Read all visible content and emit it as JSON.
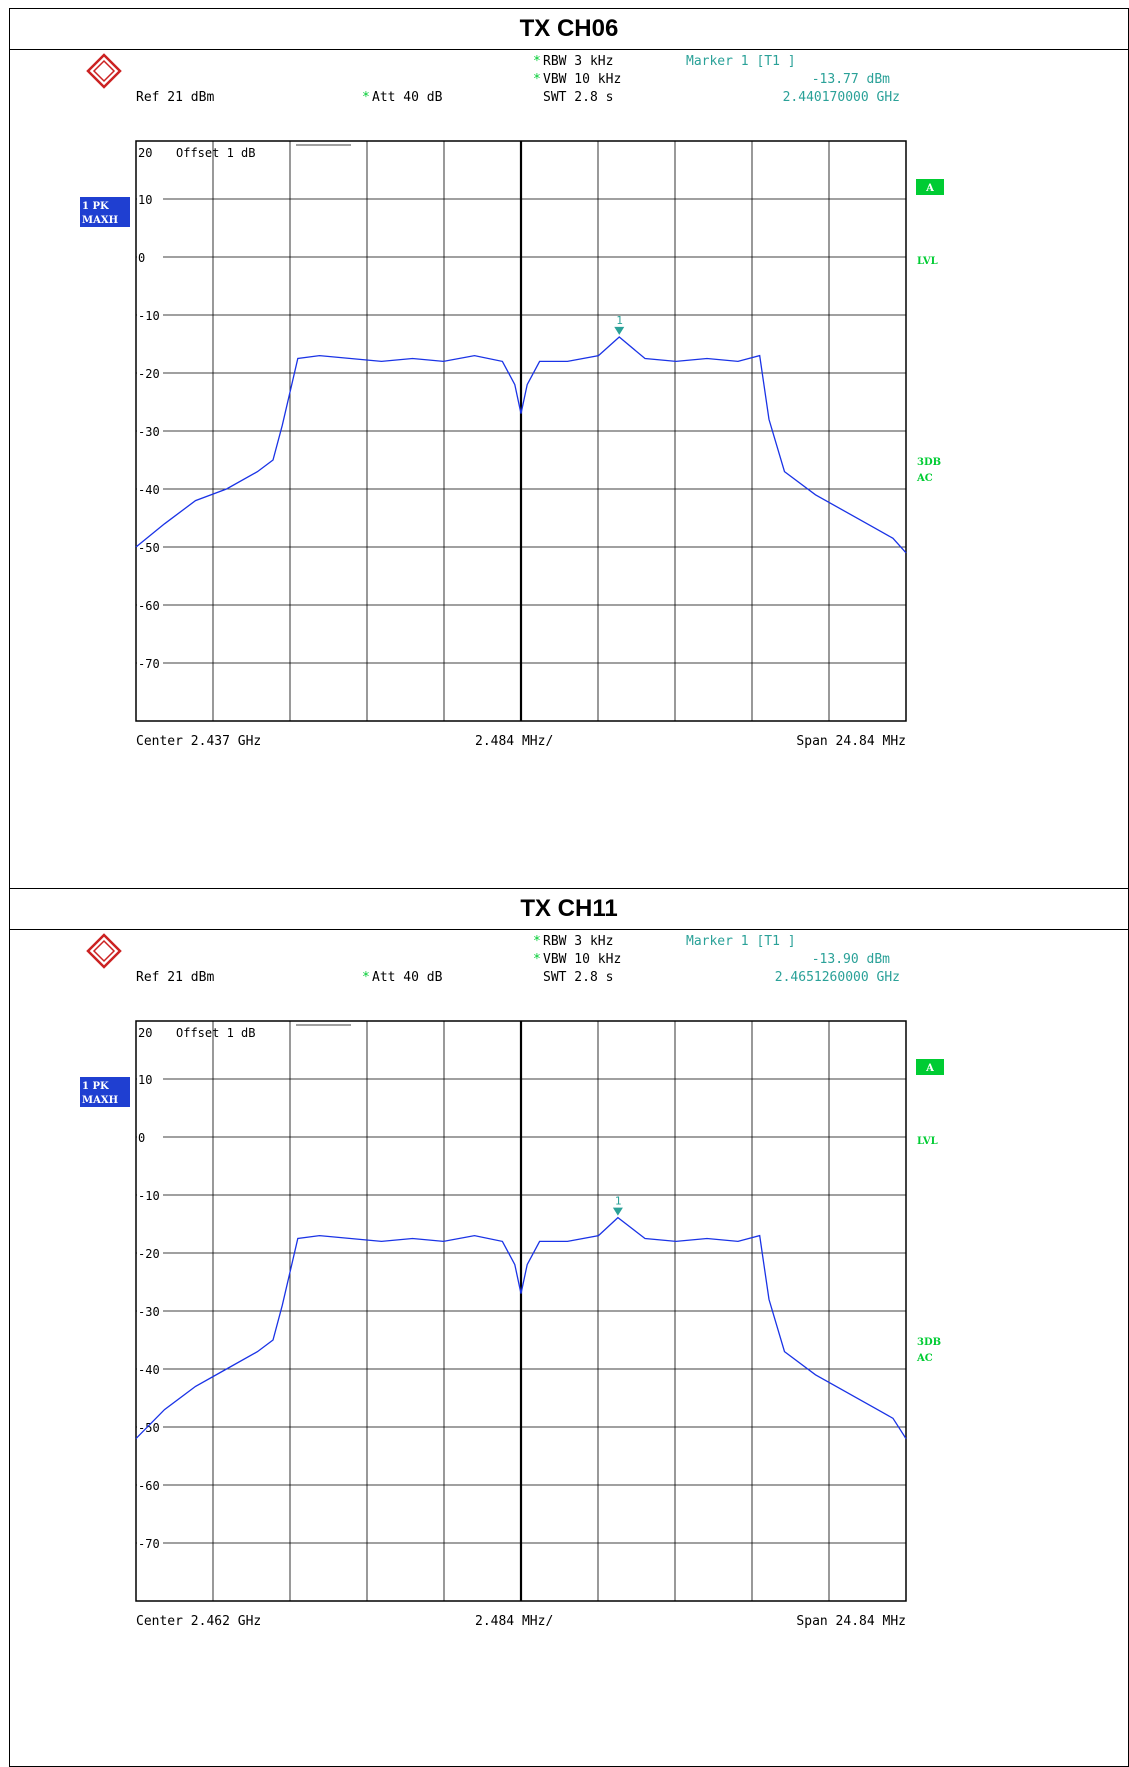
{
  "chart_data": [
    {
      "type": "line",
      "title": "TX CH06",
      "instrument_header": {
        "ref": "Ref  21 dBm",
        "att": "Att  40 dB",
        "rbw": "RBW 3 kHz",
        "vbw": "VBW 10 kHz",
        "swt": "SWT 2.8 s",
        "marker_label": "Marker 1 [T1 ]",
        "marker_level": "-13.77 dBm",
        "marker_freq": "2.440170000 GHz",
        "offset": "Offset  1 dB",
        "trace_label": [
          "1 PK",
          "MAXH"
        ],
        "side_labels": {
          "a": "A",
          "lvl": "LVL",
          "db3": "3DB",
          "ac": "AC"
        },
        "center": "Center 2.437 GHz",
        "div": "2.484 MHz/",
        "span": "Span 24.84 MHz"
      },
      "x_range_mhz": [
        2424.58,
        2449.42
      ],
      "ylim": [
        -80,
        20
      ],
      "y_ticks": [
        20,
        10,
        0,
        -10,
        -20,
        -30,
        -40,
        -50,
        -60,
        -70
      ],
      "y_tick_labels": [
        "20",
        "10",
        "0",
        "-10",
        "-20",
        "-30",
        "-40",
        "-50",
        "-60",
        "-70"
      ],
      "grid": true,
      "marker": {
        "x_mhz": 2440.17,
        "y_dbm": -13.77,
        "label": "1"
      },
      "series": [
        {
          "x": [
            2424.58,
            2425.5,
            2426.5,
            2427.5,
            2428.5,
            2429.0,
            2429.3,
            2429.8,
            2430.5,
            2431.5,
            2432.5,
            2433.5,
            2434.5,
            2435.5,
            2436.4,
            2436.8,
            2437.0,
            2437.2,
            2437.6,
            2438.5,
            2439.5,
            2440.17,
            2441.0,
            2442.0,
            2443.0,
            2444.0,
            2444.7,
            2445.0,
            2445.5,
            2446.5,
            2447.5,
            2448.5,
            2449.0,
            2449.42
          ],
          "y": [
            -50,
            -46,
            -42,
            -40,
            -37,
            -35,
            -29,
            -17.5,
            -17,
            -17.5,
            -18,
            -17.5,
            -18,
            -17,
            -18,
            -22,
            -27,
            -22,
            -18,
            -18,
            -17,
            -13.8,
            -17.5,
            -18,
            -17.5,
            -18,
            -17,
            -28,
            -37,
            -41,
            -44,
            -47,
            -48.5,
            -51
          ]
        }
      ]
    },
    {
      "type": "line",
      "title": "TX CH11",
      "instrument_header": {
        "ref": "Ref  21 dBm",
        "att": "Att  40 dB",
        "rbw": "RBW 3 kHz",
        "vbw": "VBW 10 kHz",
        "swt": "SWT 2.8 s",
        "marker_label": "Marker 1 [T1 ]",
        "marker_level": "-13.90 dBm",
        "marker_freq": "2.4651260000 GHz",
        "offset": "Offset  1 dB",
        "trace_label": [
          "1 PK",
          "MAXH"
        ],
        "side_labels": {
          "a": "A",
          "lvl": "LVL",
          "db3": "3DB",
          "ac": "AC"
        },
        "center": "Center 2.462 GHz",
        "div": "2.484 MHz/",
        "span": "Span 24.84 MHz"
      },
      "x_range_mhz": [
        2449.58,
        2474.42
      ],
      "ylim": [
        -80,
        20
      ],
      "y_ticks": [
        20,
        10,
        0,
        -10,
        -20,
        -30,
        -40,
        -50,
        -60,
        -70
      ],
      "y_tick_labels": [
        "20",
        "10",
        "0",
        "-10",
        "-20",
        "-30",
        "-40",
        "-50",
        "-60",
        "-70"
      ],
      "grid": true,
      "marker": {
        "x_mhz": 2465.126,
        "y_dbm": -13.9,
        "label": "1"
      },
      "series": [
        {
          "x": [
            2449.58,
            2450.5,
            2451.5,
            2452.5,
            2453.5,
            2454.0,
            2454.3,
            2454.8,
            2455.5,
            2456.5,
            2457.5,
            2458.5,
            2459.5,
            2460.5,
            2461.4,
            2461.8,
            2462.0,
            2462.2,
            2462.6,
            2463.5,
            2464.5,
            2465.126,
            2466.0,
            2467.0,
            2468.0,
            2469.0,
            2469.7,
            2470.0,
            2470.5,
            2471.5,
            2472.5,
            2473.5,
            2474.0,
            2474.42
          ],
          "y": [
            -52,
            -47,
            -43,
            -40,
            -37,
            -35,
            -29,
            -17.5,
            -17,
            -17.5,
            -18,
            -17.5,
            -18,
            -17,
            -18,
            -22,
            -27,
            -22,
            -18,
            -18,
            -17,
            -13.9,
            -17.5,
            -18,
            -17.5,
            -18,
            -17,
            -28,
            -37,
            -41,
            -44,
            -47,
            -48.5,
            -52
          ]
        }
      ]
    }
  ]
}
